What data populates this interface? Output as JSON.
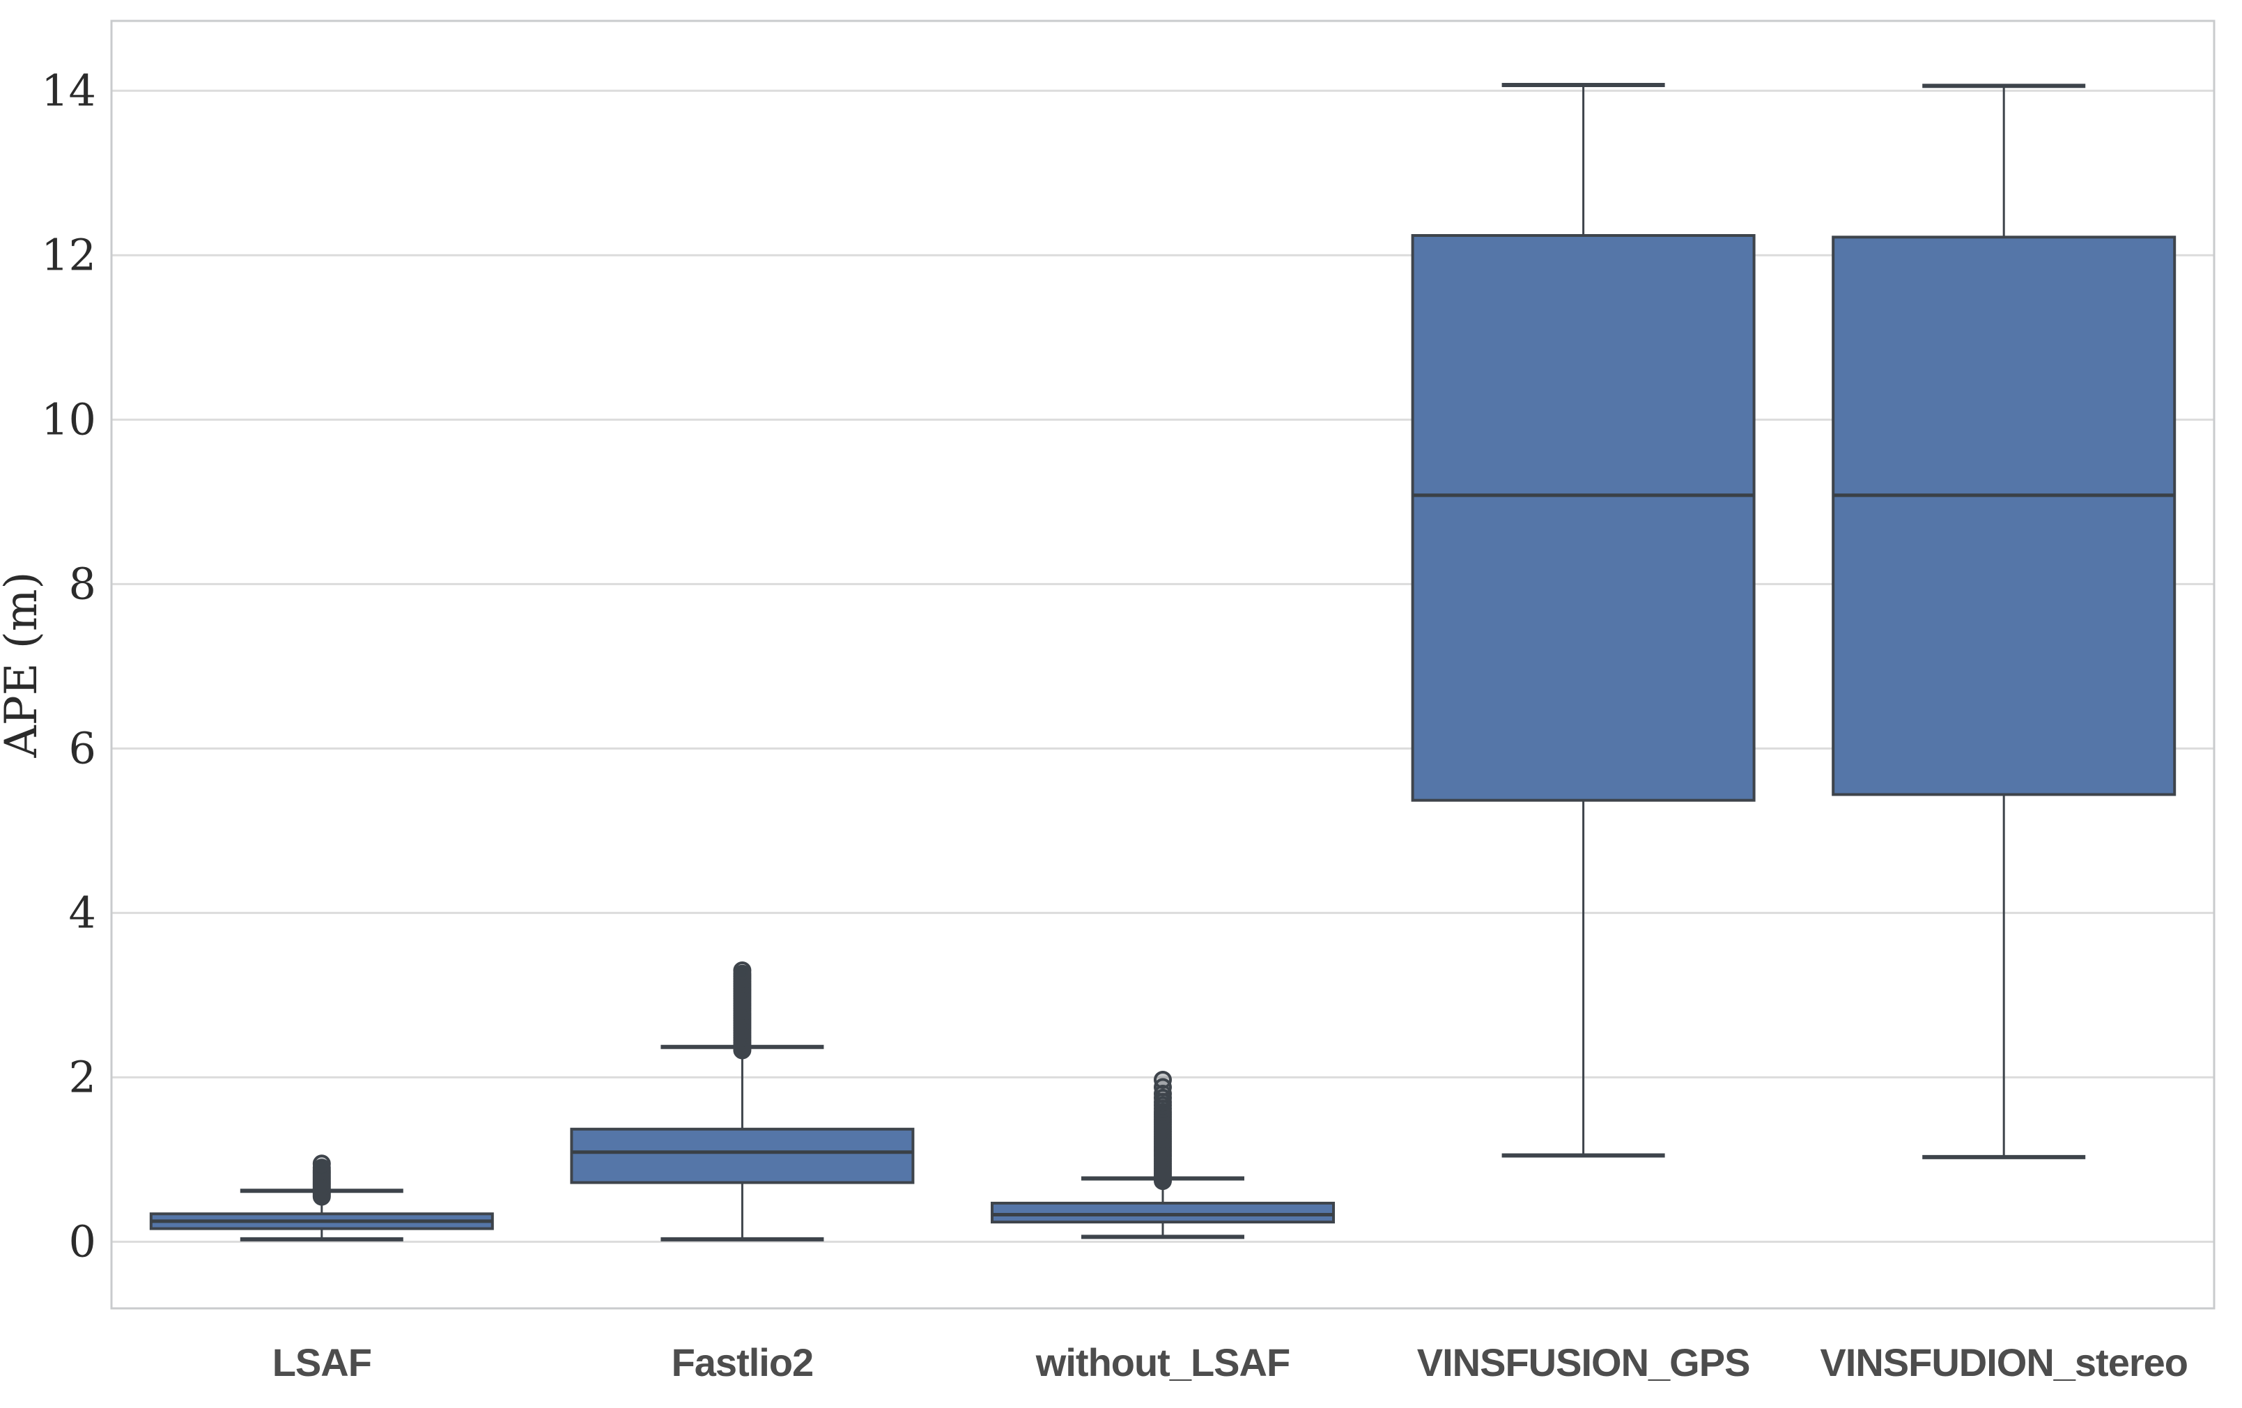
{
  "figure": {
    "title": "",
    "background": "#ffffff"
  },
  "chart_data": {
    "type": "box",
    "title": "",
    "xlabel": "",
    "ylabel": "APE (m)",
    "grid": true,
    "legend": false,
    "ylim": [
      -0.81,
      14.85
    ],
    "yticks": [
      0,
      2,
      4,
      6,
      8,
      10,
      12,
      14
    ],
    "categories": [
      "LSAF",
      "Fastlio2",
      "without_LSAF",
      "VINSFUSION_GPS",
      "VINSFUDION_stereo"
    ],
    "series": [
      {
        "label": "LSAF",
        "whislo": 0.03,
        "q1": 0.16,
        "med": 0.25,
        "q3": 0.34,
        "whishi": 0.62,
        "outliers": [
          0.55,
          0.57,
          0.59,
          0.61,
          0.63,
          0.65,
          0.67,
          0.69,
          0.71,
          0.73,
          0.75,
          0.77,
          0.79,
          0.81,
          0.83,
          0.85,
          0.87,
          0.9,
          0.95
        ]
      },
      {
        "label": "Fastlio2",
        "whislo": 0.03,
        "q1": 0.72,
        "med": 1.09,
        "q3": 1.37,
        "whishi": 2.37,
        "outliers": [
          2.33,
          2.36,
          2.39,
          2.42,
          2.45,
          2.48,
          2.51,
          2.54,
          2.57,
          2.6,
          2.63,
          2.66,
          2.69,
          2.72,
          2.75,
          2.78,
          2.81,
          2.84,
          2.87,
          2.9,
          2.93,
          2.96,
          2.99,
          3.02,
          3.05,
          3.08,
          3.11,
          3.14,
          3.17,
          3.2,
          3.23,
          3.26,
          3.3
        ]
      },
      {
        "label": "without_LSAF",
        "whislo": 0.06,
        "q1": 0.24,
        "med": 0.33,
        "q3": 0.47,
        "whishi": 0.77,
        "outliers": [
          0.74,
          0.77,
          0.8,
          0.83,
          0.86,
          0.89,
          0.92,
          0.95,
          0.98,
          1.01,
          1.04,
          1.07,
          1.1,
          1.13,
          1.16,
          1.19,
          1.22,
          1.25,
          1.28,
          1.31,
          1.34,
          1.37,
          1.4,
          1.43,
          1.46,
          1.49,
          1.52,
          1.55,
          1.58,
          1.62,
          1.66,
          1.7,
          1.75,
          1.8,
          1.88,
          1.97
        ]
      },
      {
        "label": "VINSFUSION_GPS",
        "whislo": 1.05,
        "q1": 5.37,
        "med": 9.08,
        "q3": 12.24,
        "whishi": 14.07,
        "outliers": []
      },
      {
        "label": "VINSFUDION_stereo",
        "whislo": 1.03,
        "q1": 5.44,
        "med": 9.08,
        "q3": 12.22,
        "whishi": 14.06,
        "outliers": []
      }
    ],
    "colors": {
      "box_fill": "#5576A8",
      "box_edge": "#3E444B",
      "median_line": "#3A4046",
      "whisker": "#3E444B",
      "outlier_stroke": "#3E444B",
      "outlier_fill_rgba": "rgba(62,68,75,0.28)",
      "gridline": "#DCDCDC",
      "spine": "#C9CBCD",
      "tick_text": "#2B2B2B",
      "category_text": "#4D4D4D"
    }
  }
}
